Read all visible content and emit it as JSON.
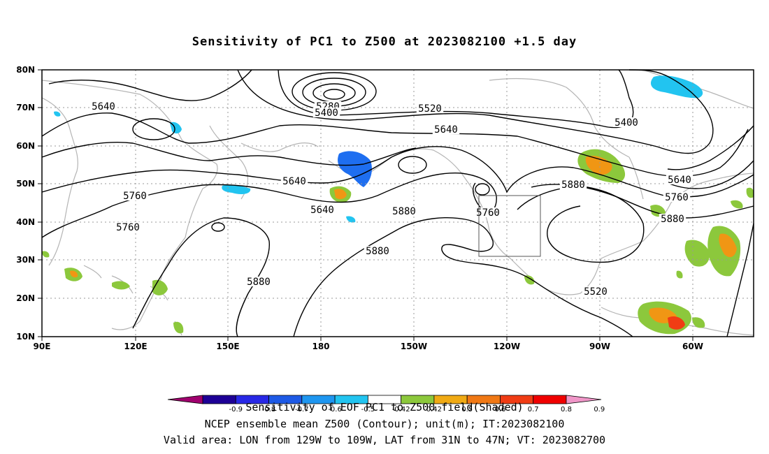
{
  "title": "Sensitivity of PC1 to Z500 at 2023082100 +1.5 day",
  "lat_labels": [
    "80N",
    "70N",
    "60N",
    "50N",
    "40N",
    "30N",
    "20N",
    "10N"
  ],
  "lon_labels": [
    "90E",
    "120E",
    "150E",
    "180",
    "150W",
    "120W",
    "90W",
    "60W"
  ],
  "contour_labels": [
    "5280",
    "5400",
    "5520",
    "5640",
    "5400",
    "5640",
    "5640",
    "5760",
    "5640",
    "5760",
    "5880",
    "5760",
    "5880",
    "5880",
    "5880",
    "5520",
    "5640",
    "5760",
    "5880"
  ],
  "colorbar_ticks": [
    "-0.9",
    "-0.8",
    "-0.7",
    "-0.6",
    "-0.5",
    "-0.42",
    "0.42",
    "0.5",
    "0.6",
    "0.7",
    "0.8",
    "0.9"
  ],
  "colors": {
    "coast": "#b4b4b4",
    "contour": "#000000",
    "shade_blue_dark": "#1e6ef0",
    "shade_blue_light": "#22c4f0",
    "shade_green": "#8cc83c",
    "shade_orange": "#f09614",
    "shade_red": "#f03c14",
    "colorbar": [
      "#a0006e",
      "#1e0096",
      "#2828e6",
      "#1e5ae6",
      "#1e96f0",
      "#22c4f0",
      "#ffffff",
      "#8cc83c",
      "#f0aa14",
      "#f07814",
      "#f03c14",
      "#f00000",
      "#f096c8"
    ]
  },
  "footer": {
    "line1": "Sensitivity of EOF PC1 to Z500 field(Shaded)",
    "line2": "NCEP ensemble mean Z500 (Contour); unit(m); IT:2023082100",
    "line3": "Valid area: LON from 129W to 109W, LAT from 31N to 47N; VT: 2023082700"
  }
}
